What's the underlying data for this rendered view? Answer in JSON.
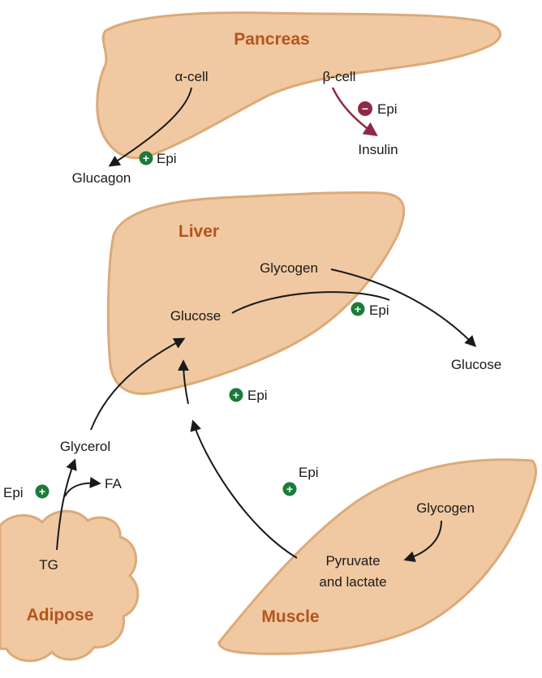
{
  "colors": {
    "organ_fill": "#f0c9a2",
    "organ_edge": "#dcaa78",
    "title": "#b5541d",
    "arrow": "#1a1a1a",
    "inhibit": "#8e2a45",
    "stimulate": "#1d7a3a"
  },
  "badges": {
    "plus": "+",
    "minus": "−"
  },
  "organs": {
    "pancreas": {
      "title": "Pancreas"
    },
    "liver": {
      "title": "Liver"
    },
    "adipose": {
      "title": "Adipose"
    },
    "muscle": {
      "title": "Muscle"
    }
  },
  "labels": {
    "alpha_cell": "α-cell",
    "beta_cell": "β-cell",
    "glucagon": "Glucagon",
    "insulin": "Insulin",
    "epi_glucagon": "Epi",
    "epi_insulin": "Epi",
    "liver_glycogen": "Glycogen",
    "liver_glucose": "Glucose",
    "epi_liver": "Epi",
    "blood_glucose": "Glucose",
    "epi_center": "Epi",
    "glycerol": "Glycerol",
    "fa": "FA",
    "epi_adipose": "Epi",
    "tg": "TG",
    "epi_muscle": "Epi",
    "muscle_glycogen": "Glycogen",
    "pyruvate": "Pyruvate",
    "lactate": "and lactate"
  }
}
